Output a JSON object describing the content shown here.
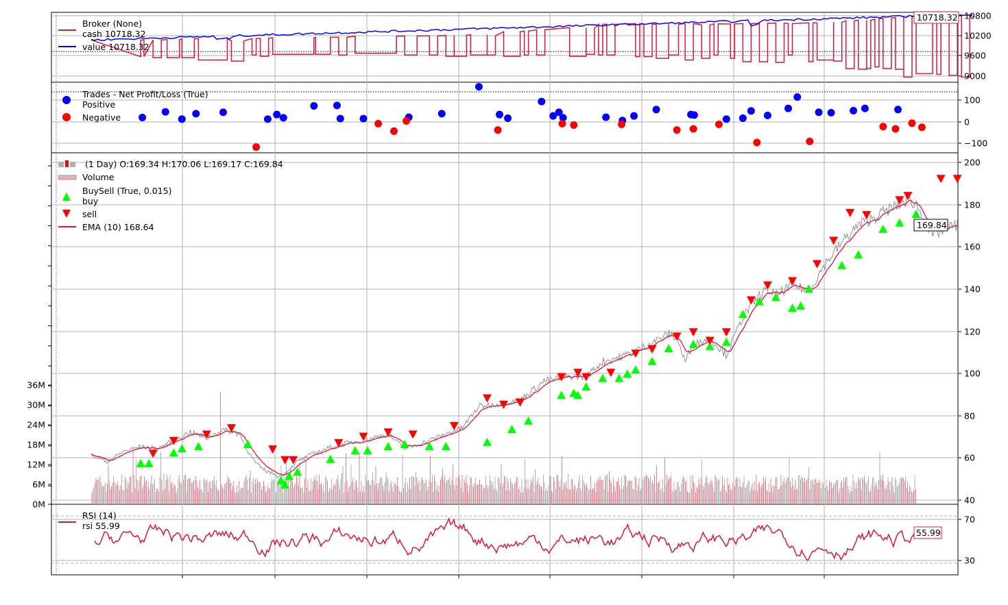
{
  "chart_data": [
    {
      "type": "line",
      "panel": "broker",
      "legend": [
        {
          "label": "Broker (None)",
          "color": ""
        },
        {
          "label": "cash 10718.32",
          "color": "#dc143c"
        },
        {
          "label": "value 10718.32",
          "color": "#0000ff"
        }
      ],
      "y_ticks": [
        "10800",
        "10200",
        "9600",
        "9000"
      ],
      "ylim": [
        8800,
        10850
      ],
      "reference_line": 9700,
      "last_value_label": "10718.32",
      "series": [
        {
          "name": "cash",
          "color": "#dc143c",
          "segments": [
            [
              0.06,
              10040,
              0.064,
              9550
            ],
            [
              0.075,
              9520,
              0.085,
              10040
            ],
            [
              0.092,
              9520,
              0.107,
              10050
            ],
            [
              0.11,
              9520,
              0.125,
              10070
            ],
            [
              0.13,
              9450,
              0.165,
              10080
            ],
            [
              0.17,
              9420,
              0.185,
              10010
            ],
            [
              0.195,
              9600,
              0.2,
              10080
            ],
            [
              0.205,
              9560,
              0.215,
              10090
            ],
            [
              0.22,
              9620,
              0.27,
              10100
            ],
            [
              0.272,
              9620,
              0.29,
              10120
            ],
            [
              0.3,
              9600,
              0.31,
              10120
            ],
            [
              0.32,
              9650,
              0.37,
              10150
            ],
            [
              0.38,
              9600,
              0.395,
              10160
            ],
            [
              0.41,
              9600,
              0.42,
              10160
            ],
            [
              0.43,
              9560,
              0.44,
              10170
            ],
            [
              0.44,
              9560,
              0.455,
              10180
            ],
            [
              0.46,
              9600,
              0.48,
              10190
            ],
            [
              0.48,
              9600,
              0.49,
              10160
            ],
            [
              0.5,
              9560,
              0.52,
              10280
            ],
            [
              0.525,
              9600,
              0.53,
              10300
            ],
            [
              0.54,
              9600,
              0.55,
              10340
            ],
            [
              0.58,
              9560,
              0.6,
              10400
            ],
            [
              0.6,
              9620,
              0.61,
              10380
            ],
            [
              0.615,
              9600,
              0.62,
              10500
            ],
            [
              0.625,
              9600,
              0.635,
              10500
            ],
            [
              0.66,
              9550,
              0.665,
              10520
            ],
            [
              0.67,
              9550,
              0.68,
              10500
            ],
            [
              0.685,
              9500,
              0.7,
              10500
            ],
            [
              0.7,
              9600,
              0.712,
              10500
            ],
            [
              0.72,
              9450,
              0.73,
              10520
            ],
            [
              0.74,
              9500,
              0.75,
              10480
            ],
            [
              0.755,
              9600,
              0.76,
              10510
            ],
            [
              0.775,
              9500,
              0.78,
              10510
            ],
            [
              0.79,
              9400,
              0.8,
              10520
            ],
            [
              0.81,
              9400,
              0.82,
              10530
            ],
            [
              0.83,
              9380,
              0.84,
              10530
            ],
            [
              0.845,
              9600,
              0.85,
              10520
            ],
            [
              0.87,
              9400,
              0.875,
              10540
            ],
            [
              0.88,
              9450,
              0.9,
              10540
            ],
            [
              0.9,
              9420,
              0.91,
              10560
            ],
            [
              0.915,
              9200,
              0.925,
              10600
            ],
            [
              0.93,
              9180,
              0.94,
              10620
            ],
            [
              0.94,
              9200,
              0.945,
              10620
            ],
            [
              0.95,
              9250,
              0.955,
              10650
            ],
            [
              0.96,
              9200,
              0.97,
              10680
            ],
            [
              0.975,
              9180,
              0.985,
              10700
            ],
            [
              0.985,
              8950,
              0.995,
              10720
            ],
            [
              1.0,
              9050,
              1.02,
              10750
            ],
            [
              1.025,
              9030,
              1.03,
              10760
            ],
            [
              1.04,
              9000,
              1.05,
              10760
            ],
            [
              1.055,
              8950,
              1.065,
              10780
            ]
          ]
        },
        {
          "name": "value",
          "color": "#0000ff"
        }
      ]
    },
    {
      "type": "scatter",
      "panel": "trades",
      "legend": [
        {
          "label": "Trades - Net Profit/Loss (True)",
          "color": ""
        },
        {
          "label": "Positive",
          "color": "#0000ff"
        },
        {
          "label": "Negative",
          "color": "#ff0000"
        }
      ],
      "y_ticks": [
        "100",
        "0",
        "−100"
      ],
      "ylim": [
        -140,
        170
      ],
      "positive": [
        [
          0.062,
          15
        ],
        [
          0.09,
          40
        ],
        [
          0.11,
          8
        ],
        [
          0.127,
          32
        ],
        [
          0.16,
          38
        ],
        [
          0.214,
          8
        ],
        [
          0.225,
          28
        ],
        [
          0.233,
          14
        ],
        [
          0.27,
          66
        ],
        [
          0.298,
          68
        ],
        [
          0.302,
          10
        ],
        [
          0.33,
          10
        ],
        [
          0.385,
          16
        ],
        [
          0.425,
          32
        ],
        [
          0.47,
          150
        ],
        [
          0.495,
          28
        ],
        [
          0.505,
          12
        ],
        [
          0.546,
          85
        ],
        [
          0.56,
          22
        ],
        [
          0.567,
          38
        ],
        [
          0.572,
          14
        ],
        [
          0.624,
          16
        ],
        [
          0.644,
          2
        ],
        [
          0.658,
          22
        ],
        [
          0.685,
          50
        ],
        [
          0.727,
          28
        ],
        [
          0.731,
          26
        ],
        [
          0.77,
          8
        ],
        [
          0.79,
          12
        ],
        [
          0.8,
          44
        ],
        [
          0.82,
          24
        ],
        [
          0.845,
          55
        ],
        [
          0.856,
          105
        ],
        [
          0.882,
          38
        ],
        [
          0.897,
          36
        ],
        [
          0.924,
          45
        ],
        [
          0.938,
          55
        ],
        [
          0.978,
          50
        ]
      ],
      "negative": [
        [
          0.2,
          -115
        ],
        [
          0.348,
          -12
        ],
        [
          0.367,
          -45
        ],
        [
          0.382,
          0
        ],
        [
          0.493,
          -40
        ],
        [
          0.571,
          -12
        ],
        [
          0.585,
          -18
        ],
        [
          0.643,
          -15
        ],
        [
          0.71,
          -40
        ],
        [
          0.73,
          -35
        ],
        [
          0.761,
          -15
        ],
        [
          0.807,
          -95
        ],
        [
          0.871,
          -90
        ],
        [
          0.96,
          -25
        ],
        [
          0.975,
          -35
        ],
        [
          0.995,
          -10
        ],
        [
          1.007,
          -28
        ]
      ]
    },
    {
      "type": "line",
      "panel": "price",
      "title": "(1 Day) O:169.34 H:170.06 L:169.17 C:169.84",
      "legend": [
        {
          "label": "(1 Day) O:169.34 H:170.06 L:169.17 C:169.84",
          "color": ""
        },
        {
          "label": "Volume",
          "color": ""
        },
        {
          "label": "BuySell (True, 0.015)",
          "color": ""
        },
        {
          "label": "buy",
          "color": "#00ff00"
        },
        {
          "label": "sell",
          "color": "#ff0000"
        },
        {
          "label": "EMA (10) 168.64",
          "color": "#dc143c"
        }
      ],
      "y_ticks": [
        "200",
        "180",
        "160",
        "140",
        "120",
        "100",
        "80",
        "60",
        "40"
      ],
      "ylim": [
        37,
        202
      ],
      "volume_ticks": [
        "36M",
        "30M",
        "24M",
        "18M",
        "12M",
        "6M",
        "0M"
      ],
      "volume_lim": [
        0,
        36000000
      ],
      "last_value_label": "169.84",
      "price_path": [
        [
          0.0,
          60
        ],
        [
          0.02,
          57
        ],
        [
          0.04,
          62
        ],
        [
          0.06,
          64
        ],
        [
          0.08,
          63
        ],
        [
          0.1,
          67
        ],
        [
          0.12,
          71
        ],
        [
          0.14,
          68
        ],
        [
          0.16,
          72
        ],
        [
          0.18,
          70
        ],
        [
          0.19,
          62
        ],
        [
          0.2,
          56
        ],
        [
          0.21,
          53
        ],
        [
          0.23,
          50
        ],
        [
          0.25,
          57
        ],
        [
          0.27,
          61
        ],
        [
          0.3,
          65
        ],
        [
          0.33,
          67
        ],
        [
          0.36,
          70
        ],
        [
          0.38,
          63
        ],
        [
          0.41,
          67
        ],
        [
          0.43,
          70
        ],
        [
          0.45,
          73
        ],
        [
          0.47,
          83
        ],
        [
          0.49,
          84
        ],
        [
          0.52,
          86
        ],
        [
          0.55,
          95
        ],
        [
          0.58,
          97
        ],
        [
          0.6,
          97
        ],
        [
          0.62,
          104
        ],
        [
          0.64,
          106
        ],
        [
          0.66,
          109
        ],
        [
          0.68,
          113
        ],
        [
          0.7,
          117
        ],
        [
          0.71,
          115
        ],
        [
          0.72,
          104
        ],
        [
          0.73,
          112
        ],
        [
          0.75,
          115
        ],
        [
          0.77,
          107
        ],
        [
          0.79,
          125
        ],
        [
          0.81,
          135
        ],
        [
          0.82,
          138
        ],
        [
          0.83,
          135
        ],
        [
          0.85,
          140
        ],
        [
          0.87,
          137
        ],
        [
          0.89,
          150
        ],
        [
          0.91,
          160
        ],
        [
          0.93,
          168
        ],
        [
          0.95,
          172
        ],
        [
          0.97,
          176
        ],
        [
          0.99,
          180
        ],
        [
          1.0,
          178
        ],
        [
          1.01,
          170
        ],
        [
          1.02,
          163
        ],
        [
          1.04,
          167
        ],
        [
          1.05,
          168
        ]
      ],
      "buy": [
        [
          0.06,
          56
        ],
        [
          0.07,
          56
        ],
        [
          0.1,
          61
        ],
        [
          0.11,
          63
        ],
        [
          0.13,
          64
        ],
        [
          0.19,
          65
        ],
        [
          0.23,
          48
        ],
        [
          0.235,
          46
        ],
        [
          0.24,
          50
        ],
        [
          0.25,
          52
        ],
        [
          0.29,
          58
        ],
        [
          0.32,
          62
        ],
        [
          0.335,
          62
        ],
        [
          0.36,
          64
        ],
        [
          0.38,
          65
        ],
        [
          0.41,
          64
        ],
        [
          0.43,
          64
        ],
        [
          0.48,
          66
        ],
        [
          0.51,
          72
        ],
        [
          0.53,
          76
        ],
        [
          0.57,
          88
        ],
        [
          0.585,
          89
        ],
        [
          0.59,
          88
        ],
        [
          0.6,
          92
        ],
        [
          0.62,
          96
        ],
        [
          0.64,
          96
        ],
        [
          0.65,
          98
        ],
        [
          0.66,
          100
        ],
        [
          0.68,
          104
        ],
        [
          0.7,
          110
        ],
        [
          0.73,
          112
        ],
        [
          0.75,
          111
        ],
        [
          0.77,
          113
        ],
        [
          0.79,
          126
        ],
        [
          0.81,
          132
        ],
        [
          0.83,
          134
        ],
        [
          0.85,
          129
        ],
        [
          0.86,
          130
        ],
        [
          0.87,
          138
        ],
        [
          0.91,
          149
        ],
        [
          0.93,
          154
        ],
        [
          0.96,
          166
        ],
        [
          0.98,
          169
        ],
        [
          1.0,
          173
        ]
      ],
      "sell": [
        [
          0.075,
          61
        ],
        [
          0.1,
          67
        ],
        [
          0.14,
          70
        ],
        [
          0.17,
          73
        ],
        [
          0.22,
          63
        ],
        [
          0.235,
          58
        ],
        [
          0.245,
          58
        ],
        [
          0.3,
          66
        ],
        [
          0.33,
          69
        ],
        [
          0.36,
          71
        ],
        [
          0.39,
          70
        ],
        [
          0.44,
          74
        ],
        [
          0.48,
          87
        ],
        [
          0.5,
          84
        ],
        [
          0.52,
          85
        ],
        [
          0.57,
          97
        ],
        [
          0.59,
          99
        ],
        [
          0.6,
          97
        ],
        [
          0.63,
          99
        ],
        [
          0.66,
          108
        ],
        [
          0.68,
          110
        ],
        [
          0.71,
          116
        ],
        [
          0.73,
          118
        ],
        [
          0.75,
          114
        ],
        [
          0.77,
          118
        ],
        [
          0.8,
          133
        ],
        [
          0.82,
          140
        ],
        [
          0.85,
          142
        ],
        [
          0.88,
          150
        ],
        [
          0.9,
          161
        ],
        [
          0.92,
          174
        ],
        [
          0.94,
          173
        ],
        [
          0.98,
          180
        ],
        [
          0.99,
          182
        ],
        [
          1.03,
          190
        ],
        [
          1.05,
          190
        ]
      ]
    },
    {
      "type": "line",
      "panel": "rsi",
      "legend": [
        {
          "label": "RSI (14)",
          "color": ""
        },
        {
          "label": "rsi 55.99",
          "color": "#dc143c"
        }
      ],
      "y_ticks": [
        "70",
        "30"
      ],
      "ylim": [
        20,
        80
      ],
      "reference_lines": [
        70,
        30
      ],
      "last_value_label": "55.99"
    }
  ]
}
